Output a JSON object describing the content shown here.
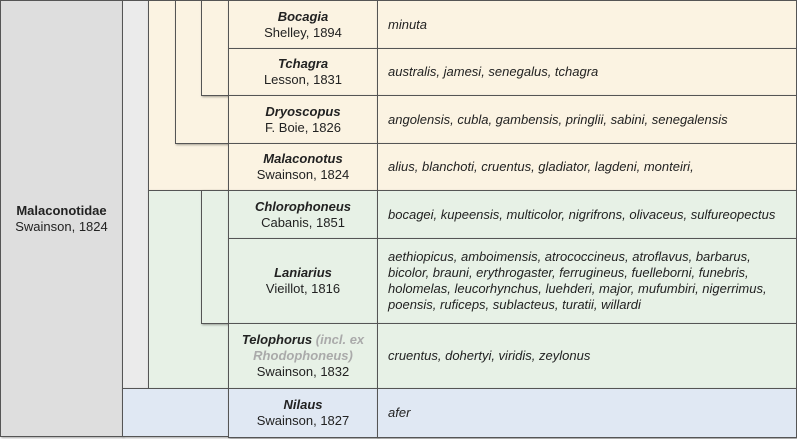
{
  "family": {
    "name": "Malaconotidae",
    "author": "Swainson, 1824"
  },
  "genera": [
    {
      "name": "Bocagia",
      "author": "Shelley, 1894",
      "species": "minuta"
    },
    {
      "name": "Tchagra",
      "author": "Lesson, 1831",
      "species": "australis, jamesi, senegalus, tchagra"
    },
    {
      "name": "Dryoscopus",
      "author": "F. Boie, 1826",
      "species": "angolensis, cubla, gambensis, pringlii, sabini, senegalensis"
    },
    {
      "name": "Malaconotus",
      "author": "Swainson, 1824",
      "species": "alius, blanchoti, cruentus, gladiator, lagdeni, monteiri,"
    },
    {
      "name": "Chlorophoneus",
      "author": "Cabanis, 1851",
      "species": "bocagei, kupeensis, multicolor, nigrifrons, olivaceus, sulfureopectus"
    },
    {
      "name": "Laniarius",
      "author": "Vieillot, 1816",
      "species": "aethiopicus, amboimensis, atrococcineus, atroflavus, barbarus, bicolor, brauni, erythrogaster, ferrugineus, fuelleborni, funebris, holomelas, leucorhynchus, luehderi, major, mufumbiri, nigerrimus, poensis, ruficeps, sublacteus, turatii, willardi"
    },
    {
      "name": "Telophorus",
      "note": "(incl. ex Rhodophoneus)",
      "author": "Swainson, 1832",
      "species": "cruentus, dohertyi, viridis, zeylonus"
    },
    {
      "name": "Nilaus",
      "author": "Swainson, 1827",
      "species": "afer"
    }
  ]
}
